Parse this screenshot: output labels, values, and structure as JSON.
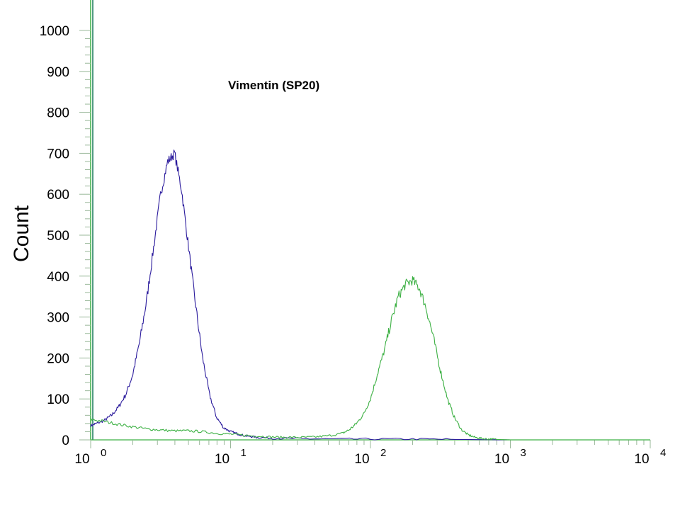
{
  "chart_data": {
    "type": "line",
    "title": "Vimentin (SP20)",
    "xlabel": "",
    "ylabel": "Count",
    "x_scale": "log",
    "xlim": [
      1,
      10000
    ],
    "ylim": [
      0,
      1000
    ],
    "y_ticks": [
      0,
      100,
      200,
      300,
      400,
      500,
      600,
      700,
      800,
      900,
      1000
    ],
    "x_ticks": [
      {
        "base": "10",
        "exp": "0",
        "value": 1
      },
      {
        "base": "10",
        "exp": "1",
        "value": 10
      },
      {
        "base": "10",
        "exp": "2",
        "value": 100
      },
      {
        "base": "10",
        "exp": "3",
        "value": 1000
      },
      {
        "base": "10",
        "exp": "4",
        "value": 10000
      }
    ],
    "grid": false,
    "legend": "none",
    "series": [
      {
        "color": "#2a1a9c",
        "x": [
          1,
          1.1,
          1.26,
          1.41,
          1.58,
          1.78,
          2.0,
          2.24,
          2.51,
          2.82,
          3.16,
          3.55,
          3.98,
          4.47,
          5.01,
          5.62,
          6.31,
          7.08,
          7.94,
          8.91,
          10.0,
          11.2,
          12.6,
          14.1,
          15.8,
          20,
          30,
          50,
          100,
          200,
          400,
          1000,
          10000
        ],
        "y": [
          35,
          40,
          48,
          60,
          80,
          110,
          160,
          240,
          340,
          470,
          600,
          680,
          700,
          610,
          470,
          330,
          200,
          110,
          55,
          30,
          20,
          15,
          10,
          8,
          6,
          4,
          3,
          2,
          2,
          2,
          1,
          0,
          0
        ]
      },
      {
        "color": "#3cb043",
        "x": [
          1,
          1.26,
          1.58,
          2.0,
          2.51,
          3.16,
          3.98,
          5.01,
          6.31,
          7.94,
          10,
          12.6,
          15.8,
          20,
          25.1,
          31.6,
          39.8,
          50.1,
          63.1,
          70.8,
          79.4,
          89.1,
          100,
          112,
          126,
          141,
          158,
          178,
          200,
          224,
          251,
          282,
          316,
          355,
          398,
          447,
          501,
          562,
          631,
          708,
          794,
          1000,
          10000
        ],
        "y": [
          50,
          45,
          38,
          32,
          27,
          24,
          22,
          22,
          20,
          16,
          14,
          11,
          9,
          7,
          6,
          6,
          7,
          10,
          16,
          25,
          40,
          62,
          100,
          160,
          220,
          290,
          350,
          380,
          390,
          370,
          320,
          250,
          170,
          100,
          55,
          25,
          12,
          6,
          3,
          2,
          1,
          0,
          0
        ]
      }
    ]
  }
}
